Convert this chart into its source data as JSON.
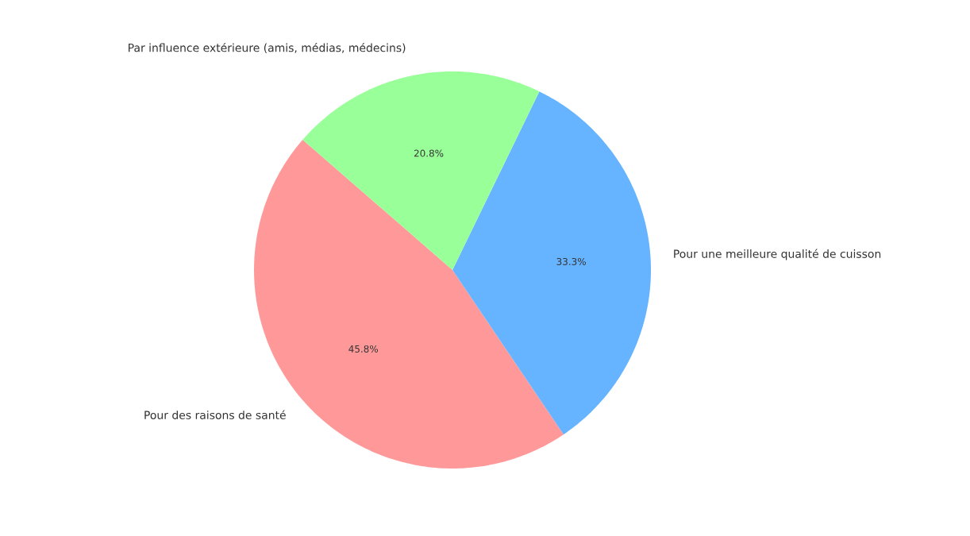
{
  "chart_data": {
    "type": "pie",
    "categories": [
      "Pour des raisons de santé",
      "Pour une meilleure qualité de cuisson",
      "Par influence extérieure (amis, médias, médecins)"
    ],
    "values": [
      45.8,
      33.3,
      20.8
    ],
    "colors": [
      "#ff9999",
      "#66b3ff",
      "#99ff99"
    ],
    "value_labels": [
      "45.8%",
      "33.3%",
      "20.8%"
    ]
  }
}
